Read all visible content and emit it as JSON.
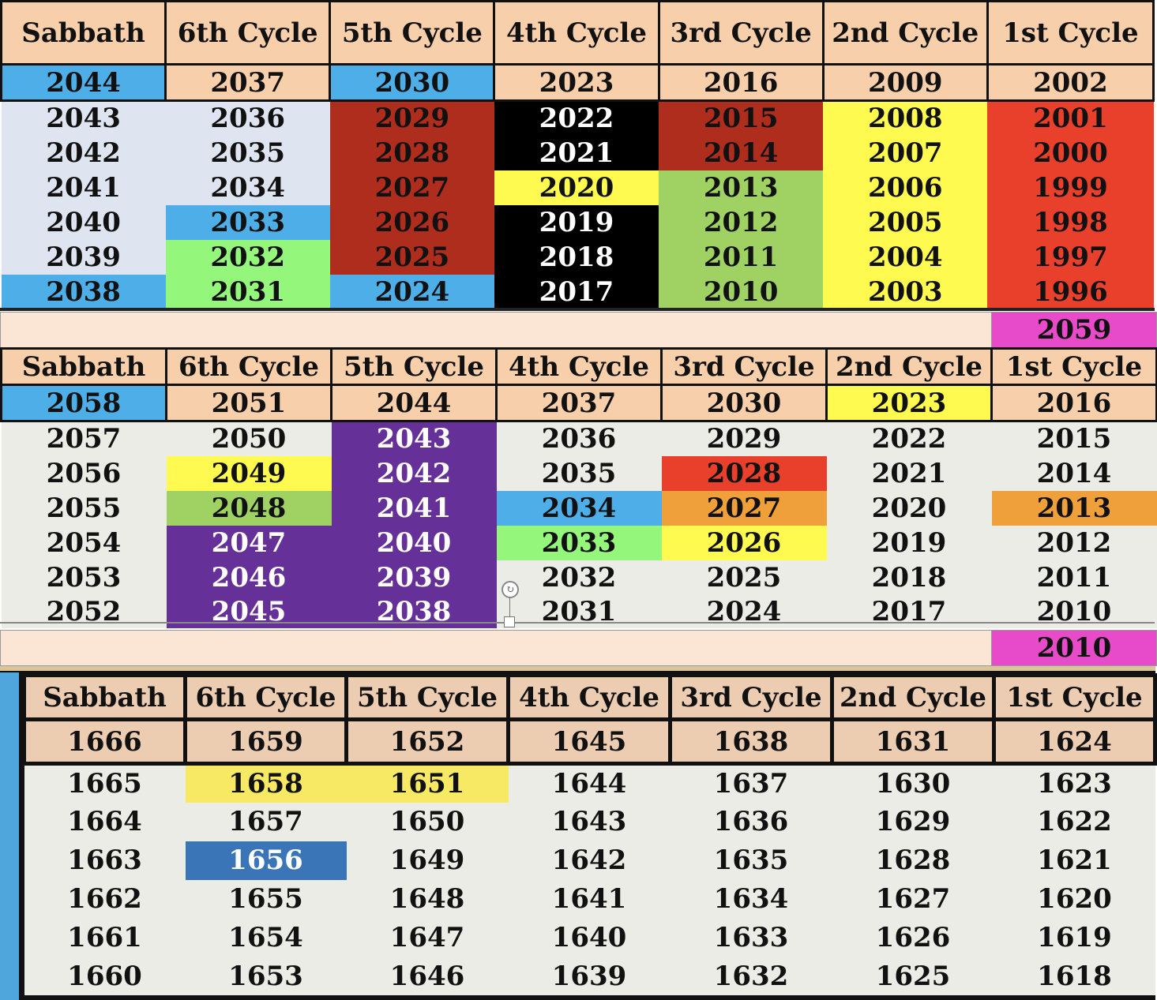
{
  "colors": {
    "header_bg": "#f7cfaa",
    "body_bg_light": "#dfe5f0",
    "body_bg_gray": "#ecece6",
    "blue": "#4eaee8",
    "dark_red": "#ae2d1d",
    "black": "#000000",
    "yellow": "#fffa50",
    "light_green": "#9fd263",
    "bright_green": "#94f77c",
    "red": "#e8402a",
    "purple": "#653199",
    "orange": "#f0a03a",
    "magenta": "#e84bc9",
    "pale_yellow": "#f7e964",
    "steel_blue": "#3a75b8",
    "band": "#fbe5d5"
  },
  "table1": {
    "headers": [
      "Sabbath",
      "6th Cycle",
      "5th Cycle",
      "4th Cycle",
      "3rd Cycle",
      "2nd Cycle",
      "1st Cycle"
    ],
    "top_row": [
      "2044",
      "2037",
      "2030",
      "2023",
      "2016",
      "2009",
      "2002"
    ],
    "rows": [
      [
        "2043",
        "2036",
        "2029",
        "2022",
        "2015",
        "2008",
        "2001"
      ],
      [
        "2042",
        "2035",
        "2028",
        "2021",
        "2014",
        "2007",
        "2000"
      ],
      [
        "2041",
        "2034",
        "2027",
        "2020",
        "2013",
        "2006",
        "1999"
      ],
      [
        "2040",
        "2033",
        "2026",
        "2019",
        "2012",
        "2005",
        "1998"
      ],
      [
        "2039",
        "2032",
        "2025",
        "2018",
        "2011",
        "2004",
        "1997"
      ],
      [
        "2038",
        "2031",
        "2024",
        "2017",
        "2010",
        "2003",
        "1996"
      ]
    ]
  },
  "tag1": "2059",
  "table2": {
    "headers": [
      "Sabbath",
      "6th Cycle",
      "5th Cycle",
      "4th Cycle",
      "3rd Cycle",
      "2nd Cycle",
      "1st Cycle"
    ],
    "top_row": [
      "2058",
      "2051",
      "2044",
      "2037",
      "2030",
      "2023",
      "2016"
    ],
    "rows": [
      [
        "2057",
        "2050",
        "2043",
        "2036",
        "2029",
        "2022",
        "2015"
      ],
      [
        "2056",
        "2049",
        "2042",
        "2035",
        "2028",
        "2021",
        "2014"
      ],
      [
        "2055",
        "2048",
        "2041",
        "2034",
        "2027",
        "2020",
        "2013"
      ],
      [
        "2054",
        "2047",
        "2040",
        "2033",
        "2026",
        "2019",
        "2012"
      ],
      [
        "2053",
        "2046",
        "2039",
        "2032",
        "2025",
        "2018",
        "2011"
      ],
      [
        "2052",
        "2045",
        "2038",
        "2031",
        "2024",
        "2017",
        "2010"
      ]
    ]
  },
  "tag2": "2010",
  "table3": {
    "headers": [
      "Sabbath",
      "6th Cycle",
      "5th Cycle",
      "4th Cycle",
      "3rd Cycle",
      "2nd Cycle",
      "1st Cycle"
    ],
    "top_row": [
      "1666",
      "1659",
      "1652",
      "1645",
      "1638",
      "1631",
      "1624"
    ],
    "rows": [
      [
        "1665",
        "1658",
        "1651",
        "1644",
        "1637",
        "1630",
        "1623"
      ],
      [
        "1664",
        "1657",
        "1650",
        "1643",
        "1636",
        "1629",
        "1622"
      ],
      [
        "1663",
        "1656",
        "1649",
        "1642",
        "1635",
        "1628",
        "1621"
      ],
      [
        "1662",
        "1655",
        "1648",
        "1641",
        "1634",
        "1627",
        "1620"
      ],
      [
        "1661",
        "1654",
        "1647",
        "1640",
        "1633",
        "1626",
        "1619"
      ],
      [
        "1660",
        "1653",
        "1646",
        "1639",
        "1632",
        "1625",
        "1618"
      ]
    ]
  }
}
